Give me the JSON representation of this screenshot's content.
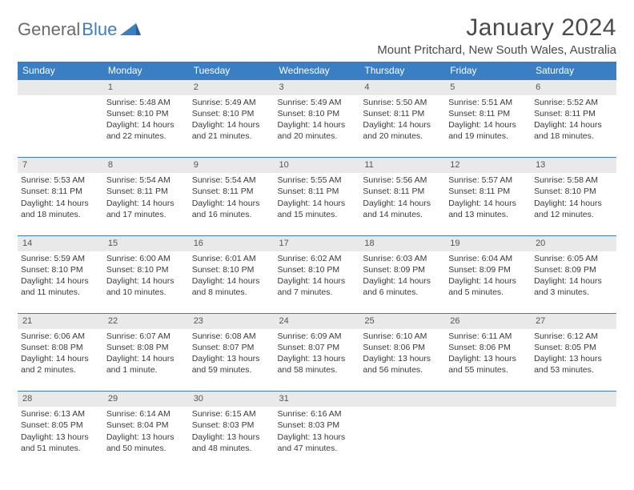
{
  "logo": {
    "part1": "General",
    "part2": "Blue"
  },
  "title": "January 2024",
  "location": "Mount Pritchard, New South Wales, Australia",
  "colors": {
    "header_bg": "#3a7fc4",
    "header_text": "#ffffff",
    "daynum_bg": "#e9e9e9",
    "rule": "#3a7fc4",
    "body_text": "#3a3a3a",
    "logo_gray": "#6b6b6b",
    "logo_blue": "#3a7fc4"
  },
  "weekdays": [
    "Sunday",
    "Monday",
    "Tuesday",
    "Wednesday",
    "Thursday",
    "Friday",
    "Saturday"
  ],
  "weeks": [
    {
      "nums": [
        "",
        "1",
        "2",
        "3",
        "4",
        "5",
        "6"
      ],
      "cells": [
        [],
        [
          "Sunrise: 5:48 AM",
          "Sunset: 8:10 PM",
          "Daylight: 14 hours",
          "and 22 minutes."
        ],
        [
          "Sunrise: 5:49 AM",
          "Sunset: 8:10 PM",
          "Daylight: 14 hours",
          "and 21 minutes."
        ],
        [
          "Sunrise: 5:49 AM",
          "Sunset: 8:10 PM",
          "Daylight: 14 hours",
          "and 20 minutes."
        ],
        [
          "Sunrise: 5:50 AM",
          "Sunset: 8:11 PM",
          "Daylight: 14 hours",
          "and 20 minutes."
        ],
        [
          "Sunrise: 5:51 AM",
          "Sunset: 8:11 PM",
          "Daylight: 14 hours",
          "and 19 minutes."
        ],
        [
          "Sunrise: 5:52 AM",
          "Sunset: 8:11 PM",
          "Daylight: 14 hours",
          "and 18 minutes."
        ]
      ]
    },
    {
      "nums": [
        "7",
        "8",
        "9",
        "10",
        "11",
        "12",
        "13"
      ],
      "cells": [
        [
          "Sunrise: 5:53 AM",
          "Sunset: 8:11 PM",
          "Daylight: 14 hours",
          "and 18 minutes."
        ],
        [
          "Sunrise: 5:54 AM",
          "Sunset: 8:11 PM",
          "Daylight: 14 hours",
          "and 17 minutes."
        ],
        [
          "Sunrise: 5:54 AM",
          "Sunset: 8:11 PM",
          "Daylight: 14 hours",
          "and 16 minutes."
        ],
        [
          "Sunrise: 5:55 AM",
          "Sunset: 8:11 PM",
          "Daylight: 14 hours",
          "and 15 minutes."
        ],
        [
          "Sunrise: 5:56 AM",
          "Sunset: 8:11 PM",
          "Daylight: 14 hours",
          "and 14 minutes."
        ],
        [
          "Sunrise: 5:57 AM",
          "Sunset: 8:11 PM",
          "Daylight: 14 hours",
          "and 13 minutes."
        ],
        [
          "Sunrise: 5:58 AM",
          "Sunset: 8:10 PM",
          "Daylight: 14 hours",
          "and 12 minutes."
        ]
      ]
    },
    {
      "nums": [
        "14",
        "15",
        "16",
        "17",
        "18",
        "19",
        "20"
      ],
      "cells": [
        [
          "Sunrise: 5:59 AM",
          "Sunset: 8:10 PM",
          "Daylight: 14 hours",
          "and 11 minutes."
        ],
        [
          "Sunrise: 6:00 AM",
          "Sunset: 8:10 PM",
          "Daylight: 14 hours",
          "and 10 minutes."
        ],
        [
          "Sunrise: 6:01 AM",
          "Sunset: 8:10 PM",
          "Daylight: 14 hours",
          "and 8 minutes."
        ],
        [
          "Sunrise: 6:02 AM",
          "Sunset: 8:10 PM",
          "Daylight: 14 hours",
          "and 7 minutes."
        ],
        [
          "Sunrise: 6:03 AM",
          "Sunset: 8:09 PM",
          "Daylight: 14 hours",
          "and 6 minutes."
        ],
        [
          "Sunrise: 6:04 AM",
          "Sunset: 8:09 PM",
          "Daylight: 14 hours",
          "and 5 minutes."
        ],
        [
          "Sunrise: 6:05 AM",
          "Sunset: 8:09 PM",
          "Daylight: 14 hours",
          "and 3 minutes."
        ]
      ]
    },
    {
      "nums": [
        "21",
        "22",
        "23",
        "24",
        "25",
        "26",
        "27"
      ],
      "cells": [
        [
          "Sunrise: 6:06 AM",
          "Sunset: 8:08 PM",
          "Daylight: 14 hours",
          "and 2 minutes."
        ],
        [
          "Sunrise: 6:07 AM",
          "Sunset: 8:08 PM",
          "Daylight: 14 hours",
          "and 1 minute."
        ],
        [
          "Sunrise: 6:08 AM",
          "Sunset: 8:07 PM",
          "Daylight: 13 hours",
          "and 59 minutes."
        ],
        [
          "Sunrise: 6:09 AM",
          "Sunset: 8:07 PM",
          "Daylight: 13 hours",
          "and 58 minutes."
        ],
        [
          "Sunrise: 6:10 AM",
          "Sunset: 8:06 PM",
          "Daylight: 13 hours",
          "and 56 minutes."
        ],
        [
          "Sunrise: 6:11 AM",
          "Sunset: 8:06 PM",
          "Daylight: 13 hours",
          "and 55 minutes."
        ],
        [
          "Sunrise: 6:12 AM",
          "Sunset: 8:05 PM",
          "Daylight: 13 hours",
          "and 53 minutes."
        ]
      ]
    },
    {
      "nums": [
        "28",
        "29",
        "30",
        "31",
        "",
        "",
        ""
      ],
      "cells": [
        [
          "Sunrise: 6:13 AM",
          "Sunset: 8:05 PM",
          "Daylight: 13 hours",
          "and 51 minutes."
        ],
        [
          "Sunrise: 6:14 AM",
          "Sunset: 8:04 PM",
          "Daylight: 13 hours",
          "and 50 minutes."
        ],
        [
          "Sunrise: 6:15 AM",
          "Sunset: 8:03 PM",
          "Daylight: 13 hours",
          "and 48 minutes."
        ],
        [
          "Sunrise: 6:16 AM",
          "Sunset: 8:03 PM",
          "Daylight: 13 hours",
          "and 47 minutes."
        ],
        [],
        [],
        []
      ]
    }
  ]
}
